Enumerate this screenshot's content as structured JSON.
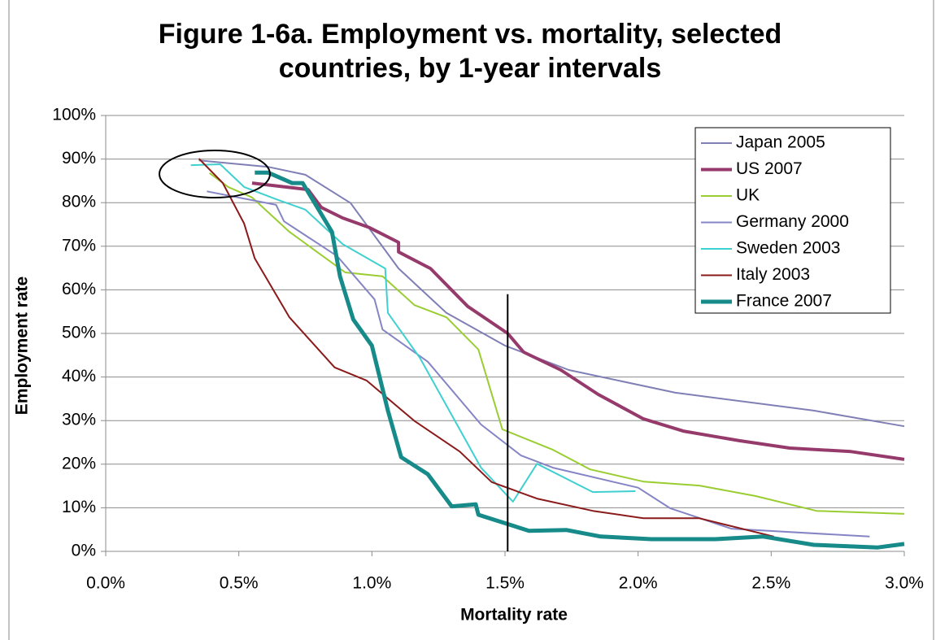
{
  "chart_data": {
    "type": "line",
    "title": [
      "Figure 1-6a. Employment vs. mortality, selected",
      "countries, by 1-year intervals"
    ],
    "x_label": "Mortality rate",
    "y_label": "Employment rate",
    "xlim": [
      0,
      3
    ],
    "ylim": [
      0,
      100
    ],
    "xticks": [
      {
        "value": 0,
        "label": "0.0%"
      },
      {
        "value": 0.5,
        "label": "0.5%"
      },
      {
        "value": 1,
        "label": "1.0%"
      },
      {
        "value": 1.5,
        "label": "1.5%"
      },
      {
        "value": 2,
        "label": "2.0%"
      },
      {
        "value": 2.5,
        "label": "2.5%"
      },
      {
        "value": 3,
        "label": "3.0%"
      }
    ],
    "yticks": [
      {
        "value": 0,
        "label": "0%"
      },
      {
        "value": 10,
        "label": "10%"
      },
      {
        "value": 20,
        "label": "20%"
      },
      {
        "value": 30,
        "label": "30%"
      },
      {
        "value": 40,
        "label": "40%"
      },
      {
        "value": 50,
        "label": "50%"
      },
      {
        "value": 60,
        "label": "60%"
      },
      {
        "value": 70,
        "label": "70%"
      },
      {
        "value": 80,
        "label": "80%"
      },
      {
        "value": 90,
        "label": "90%"
      },
      {
        "value": 100,
        "label": "100%"
      }
    ],
    "grid": true,
    "legend": "top-right",
    "reference_line": {
      "x": 1.51,
      "y": [
        0,
        59
      ]
    },
    "series": [
      {
        "name": "Japan 2005",
        "color": "#7f7fb5",
        "width": 2,
        "x": [
          0.35,
          0.61,
          0.75,
          0.92,
          1.1,
          1.28,
          1.5,
          1.74,
          2.14,
          2.66,
          3.0
        ],
        "values": [
          89.7,
          88.2,
          86.4,
          79.9,
          64.9,
          54.7,
          47.2,
          41.6,
          36.4,
          32.3,
          28.7
        ]
      },
      {
        "name": "US 2007",
        "color": "#953a6b",
        "width": 4,
        "x": [
          0.55,
          0.76,
          0.81,
          0.89,
          0.99,
          1.1,
          1.1,
          1.22,
          1.36,
          1.51,
          1.57,
          1.71,
          1.85,
          2.02,
          2.17,
          2.38,
          2.57,
          2.8,
          3.0
        ],
        "values": [
          84.5,
          83.0,
          78.9,
          76.5,
          74.3,
          70.9,
          68.7,
          64.9,
          56.2,
          50.0,
          45.7,
          41.6,
          36.0,
          30.4,
          27.6,
          25.4,
          23.7,
          22.9,
          21.1
        ]
      },
      {
        "name": "UK",
        "color": "#9acd32",
        "width": 2,
        "x": [
          0.39,
          0.46,
          0.55,
          0.69,
          0.9,
          1.04,
          1.16,
          1.28,
          1.4,
          1.49,
          1.68,
          1.82,
          2.02,
          2.23,
          2.44,
          2.67,
          3.0
        ],
        "values": [
          86.8,
          83.6,
          81.2,
          73.3,
          64.0,
          63.1,
          56.5,
          53.7,
          46.3,
          28.0,
          23.3,
          18.8,
          16.0,
          15.1,
          12.7,
          9.3,
          8.6
        ]
      },
      {
        "name": "Germany 2000",
        "color": "#8585c5",
        "width": 2,
        "x": [
          0.38,
          0.64,
          0.67,
          0.87,
          1.01,
          1.04,
          1.21,
          1.41,
          1.56,
          1.68,
          2.0,
          2.12,
          2.35,
          2.87
        ],
        "values": [
          82.6,
          79.5,
          75.7,
          67.7,
          57.8,
          50.9,
          43.5,
          29.1,
          22.0,
          19.2,
          14.6,
          9.9,
          5.2,
          3.4
        ]
      },
      {
        "name": "Sweden 2003",
        "color": "#40d0d0",
        "width": 2,
        "x": [
          0.32,
          0.43,
          0.52,
          0.64,
          0.75,
          0.89,
          1.05,
          1.06,
          1.18,
          1.41,
          1.53,
          1.62,
          1.83,
          1.99
        ],
        "values": [
          88.6,
          88.8,
          83.6,
          80.8,
          78.4,
          70.5,
          64.9,
          54.7,
          44.4,
          19.2,
          11.4,
          20.1,
          13.6,
          13.8
        ]
      },
      {
        "name": "Italy 2003",
        "color": "#8b1a1a",
        "width": 2,
        "x": [
          0.35,
          0.44,
          0.52,
          0.56,
          0.69,
          0.86,
          0.98,
          1.16,
          1.33,
          1.45,
          1.62,
          1.83,
          2.02,
          2.23,
          2.51
        ],
        "values": [
          90.1,
          84.5,
          75.2,
          67.2,
          53.7,
          42.2,
          39.2,
          29.9,
          22.9,
          15.9,
          12.1,
          9.3,
          7.6,
          7.6,
          3.4
        ]
      },
      {
        "name": "France 2007",
        "color": "#178a8a",
        "width": 5,
        "x": [
          0.56,
          0.61,
          0.7,
          0.74,
          0.85,
          0.88,
          0.93,
          1.0,
          1.06,
          1.11,
          1.21,
          1.3,
          1.39,
          1.4,
          1.59,
          1.73,
          1.86,
          2.05,
          2.29,
          2.47,
          2.66,
          2.9,
          3.0
        ],
        "values": [
          86.9,
          86.9,
          84.5,
          84.5,
          73.3,
          63.1,
          53.2,
          47.2,
          32.3,
          21.6,
          17.7,
          10.3,
          10.8,
          8.4,
          4.7,
          4.9,
          3.4,
          2.8,
          2.8,
          3.4,
          1.5,
          0.9,
          1.7
        ]
      }
    ]
  }
}
